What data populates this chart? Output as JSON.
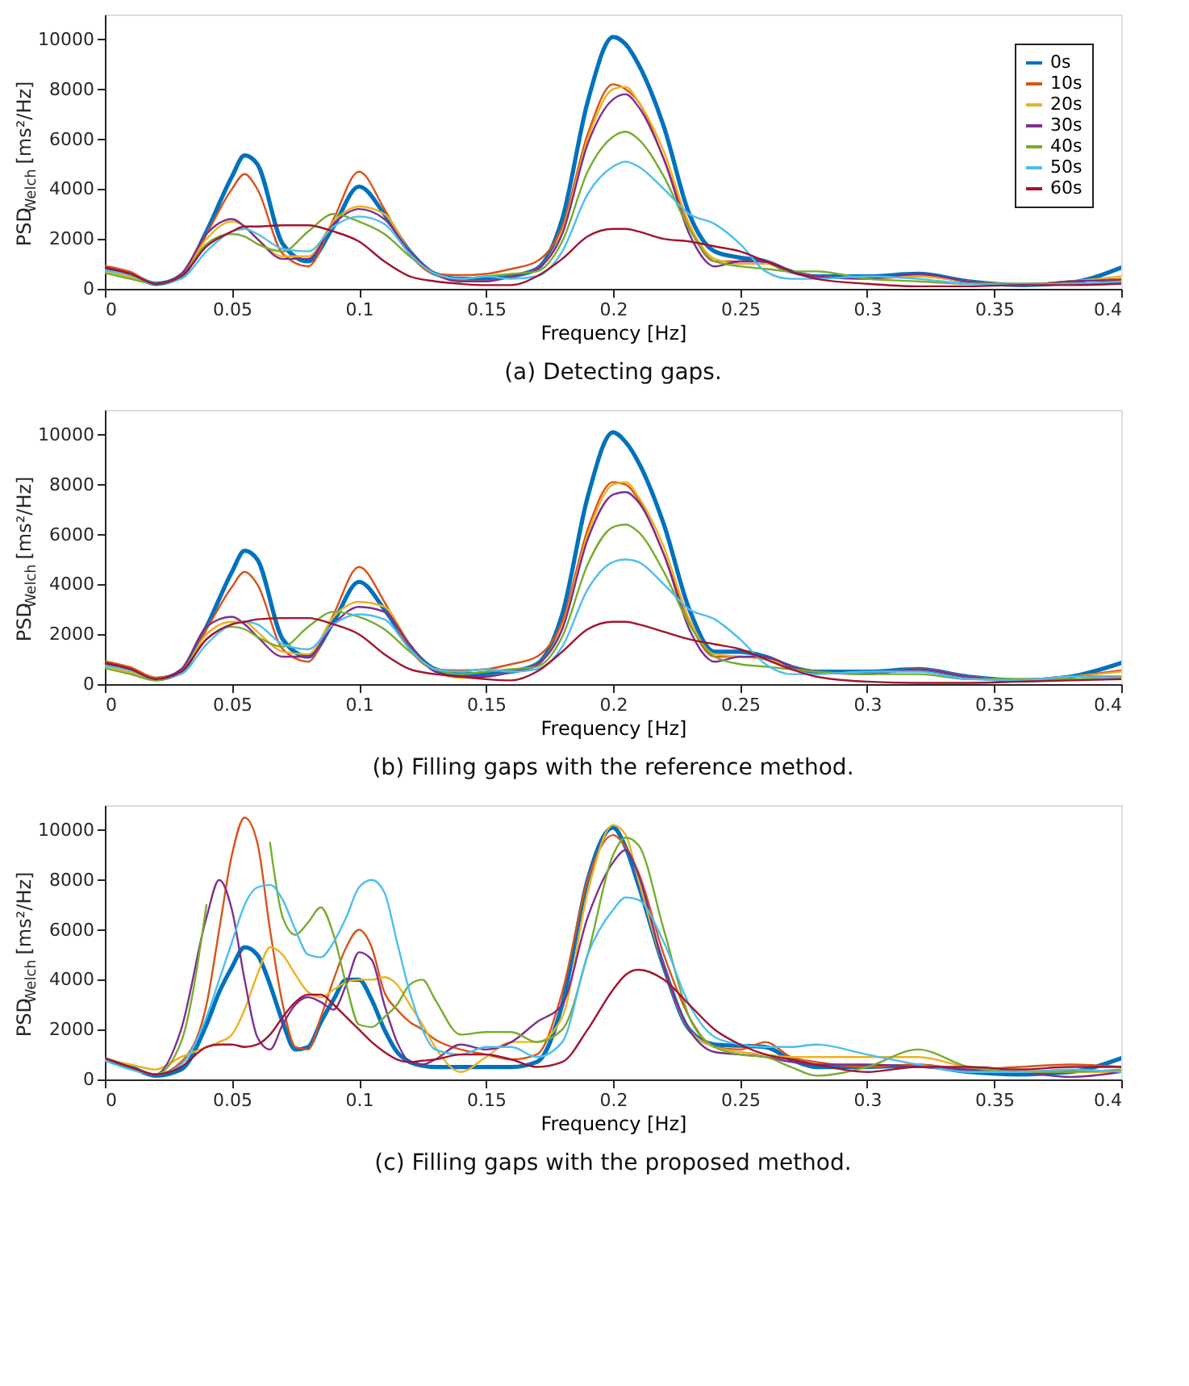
{
  "chart_data": [
    {
      "type": "line",
      "title": "(a) Detecting gaps.",
      "xlabel": "Frequency [Hz]",
      "ylabel": "PSD$_{Welch}$ [ms²/Hz]",
      "x": [
        0,
        0.01,
        0.02,
        0.03,
        0.04,
        0.05,
        0.055,
        0.06,
        0.07,
        0.08,
        0.09,
        0.1,
        0.11,
        0.12,
        0.13,
        0.14,
        0.15,
        0.16,
        0.17,
        0.18,
        0.19,
        0.2,
        0.205,
        0.21,
        0.22,
        0.23,
        0.24,
        0.25,
        0.26,
        0.27,
        0.28,
        0.3,
        0.32,
        0.34,
        0.36,
        0.38,
        0.4
      ],
      "series": [
        {
          "name": "0s",
          "color": "#0072bd",
          "values": [
            850,
            600,
            200,
            500,
            2300,
            4500,
            5350,
            5000,
            1800,
            1100,
            2500,
            4100,
            3000,
            1500,
            600,
            400,
            400,
            500,
            800,
            2800,
            7500,
            10100,
            9800,
            9000,
            6500,
            3000,
            1500,
            1250,
            1100,
            700,
            500,
            500,
            600,
            300,
            150,
            250,
            850
          ]
        },
        {
          "name": "10s",
          "color": "#d95319",
          "values": [
            920,
            680,
            200,
            500,
            2200,
            4000,
            4600,
            4000,
            1400,
            900,
            2800,
            4700,
            3200,
            1400,
            600,
            550,
            600,
            800,
            1100,
            2500,
            6200,
            8200,
            8000,
            7500,
            5200,
            2500,
            1100,
            1100,
            1100,
            700,
            500,
            400,
            500,
            300,
            150,
            300,
            400
          ]
        },
        {
          "name": "20s",
          "color": "#edb120",
          "values": [
            730,
            470,
            200,
            500,
            2000,
            2700,
            2500,
            2000,
            1300,
            1300,
            2700,
            3300,
            3000,
            1500,
            600,
            300,
            300,
            500,
            800,
            2300,
            6000,
            8000,
            8100,
            7500,
            5500,
            2600,
            1200,
            1000,
            1000,
            700,
            500,
            400,
            500,
            300,
            150,
            300,
            500
          ]
        },
        {
          "name": "30s",
          "color": "#7e2f8e",
          "values": [
            850,
            600,
            200,
            600,
            2200,
            2800,
            2500,
            2000,
            1200,
            1200,
            2600,
            3200,
            2800,
            1500,
            600,
            300,
            300,
            500,
            800,
            2200,
            5800,
            7600,
            7800,
            7300,
            5200,
            2200,
            900,
            1100,
            1100,
            700,
            500,
            400,
            600,
            300,
            150,
            300,
            350
          ]
        },
        {
          "name": "40s",
          "color": "#77ac30",
          "values": [
            640,
            400,
            200,
            500,
            1800,
            2200,
            2100,
            1800,
            1500,
            2300,
            3000,
            2700,
            2200,
            1300,
            600,
            400,
            500,
            600,
            700,
            1900,
            4700,
            6100,
            6300,
            6000,
            4500,
            2400,
            1100,
            900,
            800,
            700,
            700,
            400,
            300,
            200,
            200,
            200,
            300
          ]
        },
        {
          "name": "50s",
          "color": "#4dbeee",
          "values": [
            750,
            550,
            200,
            400,
            1500,
            2300,
            2400,
            2200,
            1600,
            1500,
            2500,
            2900,
            2600,
            1400,
            600,
            400,
            500,
            400,
            500,
            1500,
            3800,
            4900,
            5100,
            4900,
            4000,
            3000,
            2600,
            1800,
            700,
            400,
            400,
            500,
            400,
            200,
            150,
            200,
            250
          ]
        },
        {
          "name": "60s",
          "color": "#a2142f",
          "values": [
            850,
            600,
            200,
            500,
            1700,
            2300,
            2500,
            2500,
            2550,
            2550,
            2300,
            1900,
            1100,
            500,
            300,
            200,
            150,
            150,
            500,
            1200,
            2100,
            2400,
            2400,
            2300,
            2000,
            1900,
            1700,
            1500,
            1100,
            700,
            400,
            200,
            100,
            100,
            150,
            150,
            200
          ]
        }
      ],
      "xlim": [
        0,
        0.4
      ],
      "xticks": [
        0,
        0.05,
        0.1,
        0.15,
        0.2,
        0.25,
        0.3,
        0.35,
        0.4
      ],
      "ylim": [
        0,
        11000
      ],
      "yticks": [
        0,
        2000,
        4000,
        6000,
        8000,
        10000
      ],
      "legend": "top right",
      "grid": false,
      "line_style": "solid",
      "marker": "none"
    },
    {
      "type": "line",
      "title": "(b) Filling gaps with the reference method.",
      "xlabel": "Frequency [Hz]",
      "ylabel": "PSD$_{Welch}$ [ms²/Hz]",
      "x": [
        0,
        0.01,
        0.02,
        0.03,
        0.04,
        0.05,
        0.055,
        0.06,
        0.07,
        0.08,
        0.09,
        0.1,
        0.11,
        0.12,
        0.13,
        0.14,
        0.15,
        0.16,
        0.17,
        0.18,
        0.19,
        0.2,
        0.205,
        0.21,
        0.22,
        0.23,
        0.24,
        0.25,
        0.26,
        0.27,
        0.28,
        0.3,
        0.32,
        0.34,
        0.36,
        0.38,
        0.4
      ],
      "series": [
        {
          "name": "0s",
          "color": "#0072bd",
          "values": [
            850,
            600,
            200,
            500,
            2300,
            4500,
            5350,
            5000,
            1800,
            1100,
            2500,
            4100,
            3000,
            1500,
            600,
            400,
            400,
            500,
            800,
            2800,
            7500,
            10100,
            9700,
            8900,
            6400,
            3000,
            1300,
            1300,
            1100,
            700,
            500,
            500,
            600,
            300,
            150,
            300,
            850
          ]
        },
        {
          "name": "10s",
          "color": "#d95319",
          "values": [
            920,
            680,
            260,
            500,
            2200,
            3900,
            4500,
            4000,
            1400,
            900,
            2800,
            4700,
            3300,
            1400,
            600,
            550,
            600,
            800,
            1100,
            2500,
            6200,
            8100,
            8000,
            7400,
            5200,
            2500,
            1100,
            1100,
            1000,
            700,
            500,
            400,
            600,
            300,
            150,
            300,
            550
          ]
        },
        {
          "name": "20s",
          "color": "#edb120",
          "values": [
            730,
            470,
            200,
            500,
            2000,
            2500,
            2500,
            2100,
            1300,
            1200,
            2700,
            3300,
            3100,
            1600,
            500,
            250,
            300,
            500,
            800,
            2300,
            6000,
            8000,
            8100,
            7500,
            5500,
            2600,
            1200,
            1100,
            1000,
            700,
            500,
            400,
            600,
            300,
            150,
            300,
            500
          ]
        },
        {
          "name": "30s",
          "color": "#7e2f8e",
          "values": [
            850,
            600,
            200,
            600,
            2300,
            2700,
            2400,
            1900,
            1100,
            1100,
            2400,
            3100,
            2900,
            1600,
            500,
            300,
            300,
            500,
            800,
            2200,
            5800,
            7600,
            7700,
            7300,
            5200,
            2200,
            900,
            1100,
            1100,
            700,
            500,
            400,
            600,
            300,
            150,
            300,
            300
          ]
        },
        {
          "name": "40s",
          "color": "#77ac30",
          "values": [
            640,
            400,
            150,
            500,
            1800,
            2300,
            2200,
            1900,
            1500,
            2300,
            2900,
            2700,
            2200,
            1300,
            600,
            400,
            500,
            600,
            700,
            1900,
            4800,
            6300,
            6400,
            6100,
            4500,
            2400,
            1100,
            800,
            700,
            600,
            500,
            400,
            400,
            200,
            200,
            200,
            300
          ]
        },
        {
          "name": "50s",
          "color": "#4dbeee",
          "values": [
            750,
            550,
            200,
            400,
            1600,
            2400,
            2500,
            2400,
            1600,
            1400,
            2400,
            2800,
            2600,
            1400,
            600,
            500,
            600,
            500,
            600,
            1500,
            3800,
            4900,
            5000,
            4900,
            4000,
            3000,
            2600,
            1800,
            800,
            400,
            400,
            500,
            500,
            200,
            150,
            300,
            250
          ]
        },
        {
          "name": "60s",
          "color": "#a2142f",
          "values": [
            850,
            600,
            200,
            500,
            1800,
            2400,
            2500,
            2600,
            2650,
            2650,
            2400,
            2000,
            1200,
            600,
            400,
            300,
            200,
            150,
            500,
            1300,
            2200,
            2500,
            2500,
            2400,
            2100,
            1800,
            1600,
            1400,
            1000,
            600,
            300,
            100,
            50,
            50,
            100,
            150,
            200
          ]
        }
      ],
      "xlim": [
        0,
        0.4
      ],
      "xticks": [
        0,
        0.05,
        0.1,
        0.15,
        0.2,
        0.25,
        0.3,
        0.35,
        0.4
      ],
      "ylim": [
        0,
        11000
      ],
      "yticks": [
        0,
        2000,
        4000,
        6000,
        8000,
        10000
      ],
      "legend": "top right",
      "grid": false,
      "line_style": "solid",
      "marker": "none"
    },
    {
      "type": "line",
      "title": "(c) Filling gaps with the proposed method.",
      "xlabel": "Frequency [Hz]",
      "ylabel": "PSD$_{Welch}$ [ms²/Hz]",
      "x": [
        0,
        0.01,
        0.02,
        0.03,
        0.04,
        0.045,
        0.05,
        0.055,
        0.06,
        0.065,
        0.07,
        0.075,
        0.08,
        0.085,
        0.09,
        0.095,
        0.1,
        0.105,
        0.11,
        0.115,
        0.12,
        0.125,
        0.13,
        0.14,
        0.15,
        0.16,
        0.17,
        0.18,
        0.19,
        0.2,
        0.205,
        0.21,
        0.22,
        0.23,
        0.24,
        0.25,
        0.26,
        0.27,
        0.28,
        0.3,
        0.32,
        0.34,
        0.36,
        0.38,
        0.4
      ],
      "series": [
        {
          "name": "0s",
          "color": "#0072bd",
          "values": [
            800,
            500,
            150,
            400,
            2200,
            3500,
            4500,
            5300,
            5000,
            3800,
            2300,
            1200,
            1300,
            2300,
            3200,
            4000,
            4000,
            3200,
            2000,
            1100,
            700,
            550,
            500,
            500,
            500,
            500,
            700,
            3000,
            8000,
            10100,
            9300,
            7800,
            4500,
            2000,
            1400,
            1350,
            1300,
            800,
            500,
            500,
            550,
            300,
            200,
            300,
            850
          ]
        },
        {
          "name": "10s",
          "color": "#d95319",
          "values": [
            850,
            500,
            200,
            700,
            3000,
            6000,
            9000,
            10500,
            9500,
            6000,
            3000,
            1300,
            1200,
            2500,
            4000,
            5300,
            6000,
            5300,
            3500,
            2800,
            2300,
            2000,
            1600,
            1200,
            1000,
            800,
            1000,
            3500,
            8000,
            9800,
            9300,
            8300,
            5000,
            2500,
            1300,
            1200,
            1500,
            900,
            700,
            500,
            600,
            400,
            500,
            600,
            500
          ]
        },
        {
          "name": "20s",
          "color": "#edb120",
          "values": [
            800,
            600,
            400,
            900,
            1300,
            1500,
            1800,
            2800,
            4200,
            5300,
            5000,
            4200,
            3500,
            3300,
            3600,
            3900,
            4000,
            4000,
            4100,
            3800,
            3000,
            2200,
            1300,
            300,
            900,
            1500,
            1500,
            2500,
            7500,
            10200,
            9800,
            8000,
            4500,
            2000,
            1300,
            1100,
            1000,
            900,
            900,
            900,
            900,
            500,
            400,
            300,
            300
          ]
        },
        {
          "name": "30s",
          "color": "#7e2f8e",
          "values": [
            850,
            500,
            200,
            2000,
            6500,
            8000,
            6800,
            4000,
            1700,
            1200,
            2200,
            3000,
            3300,
            3100,
            2800,
            3800,
            5100,
            4800,
            3000,
            1500,
            700,
            600,
            800,
            1400,
            1200,
            1500,
            2300,
            3000,
            6500,
            8700,
            9200,
            8200,
            4500,
            2000,
            1100,
            1000,
            900,
            700,
            600,
            600,
            500,
            400,
            300,
            100,
            300
          ]
        },
        {
          "name": "40s",
          "color": "#77ac30",
          "values": [
            850,
            500,
            200,
            1500,
            7000,
            null,
            null,
            null,
            null,
            9500,
            6500,
            5800,
            6300,
            6900,
            5800,
            3800,
            2200,
            2100,
            2500,
            3000,
            3800,
            4000,
            3200,
            1800,
            1900,
            1900,
            1500,
            2000,
            5000,
            9000,
            9700,
            9400,
            6000,
            2500,
            1300,
            1000,
            900,
            500,
            150,
            500,
            1200,
            500,
            300,
            300,
            400
          ]
        },
        {
          "name": "50s",
          "color": "#4dbeee",
          "values": [
            750,
            400,
            200,
            600,
            2500,
            4000,
            5500,
            7000,
            7700,
            7800,
            7200,
            6000,
            5000,
            4900,
            5500,
            6500,
            7700,
            8000,
            7500,
            5500,
            3500,
            2000,
            1200,
            1000,
            1300,
            1300,
            900,
            1500,
            5000,
            6800,
            7300,
            7200,
            5500,
            3000,
            1700,
            1400,
            1300,
            1300,
            1400,
            1000,
            600,
            300,
            300,
            400,
            300
          ]
        },
        {
          "name": "60s",
          "color": "#a2142f",
          "values": [
            850,
            500,
            200,
            500,
            1300,
            1400,
            1400,
            1300,
            1400,
            1800,
            2500,
            3100,
            3400,
            3400,
            3000,
            2500,
            2000,
            1500,
            1100,
            800,
            700,
            750,
            800,
            1000,
            1000,
            800,
            500,
            700,
            2000,
            3600,
            4200,
            4400,
            4000,
            3000,
            2000,
            1400,
            1000,
            800,
            600,
            300,
            500,
            500,
            400,
            500,
            500
          ]
        }
      ],
      "xlim": [
        0,
        0.4
      ],
      "xticks": [
        0,
        0.05,
        0.1,
        0.15,
        0.2,
        0.25,
        0.3,
        0.35,
        0.4
      ],
      "ylim": [
        0,
        11000
      ],
      "yticks": [
        0,
        2000,
        4000,
        6000,
        8000,
        10000
      ],
      "legend": "top right",
      "grid": false,
      "line_style": "solid",
      "marker": "none"
    }
  ]
}
